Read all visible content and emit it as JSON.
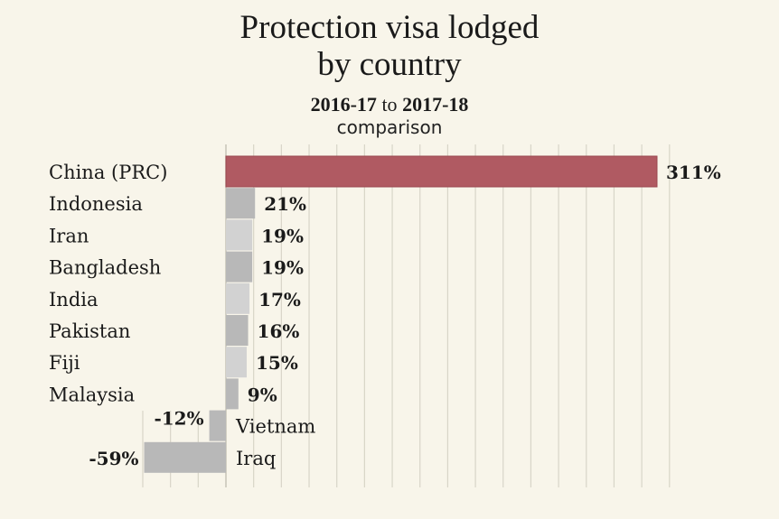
{
  "title_line1": "Protection visa lodged",
  "title_line2": "by country",
  "subtitle": {
    "from": "2016-17",
    "connector": "to",
    "to": "2017-18",
    "line2": "comparison"
  },
  "colors": {
    "highlight": "#b05a62",
    "bar_dark": "#b8b8b8",
    "bar_light": "#d2d2d2",
    "grid": "#d8d5c8",
    "background": "#f8f5ea"
  },
  "chart_data": {
    "type": "bar",
    "orientation": "horizontal",
    "unit": "%",
    "categories": [
      "China (PRC)",
      "Indonesia",
      "Iran",
      "Bangladesh",
      "India",
      "Pakistan",
      "Fiji",
      "Malaysia",
      "Vietnam",
      "Iraq"
    ],
    "values": [
      311,
      21,
      19,
      19,
      17,
      16,
      15,
      9,
      -12,
      -59
    ],
    "value_labels": [
      "311%",
      "21%",
      "19%",
      "19%",
      "17%",
      "16%",
      "15%",
      "9%",
      "-12%",
      "-59%"
    ],
    "highlight_index": 0,
    "xlim": [
      -60,
      320
    ],
    "grid": true,
    "legend": "none"
  }
}
